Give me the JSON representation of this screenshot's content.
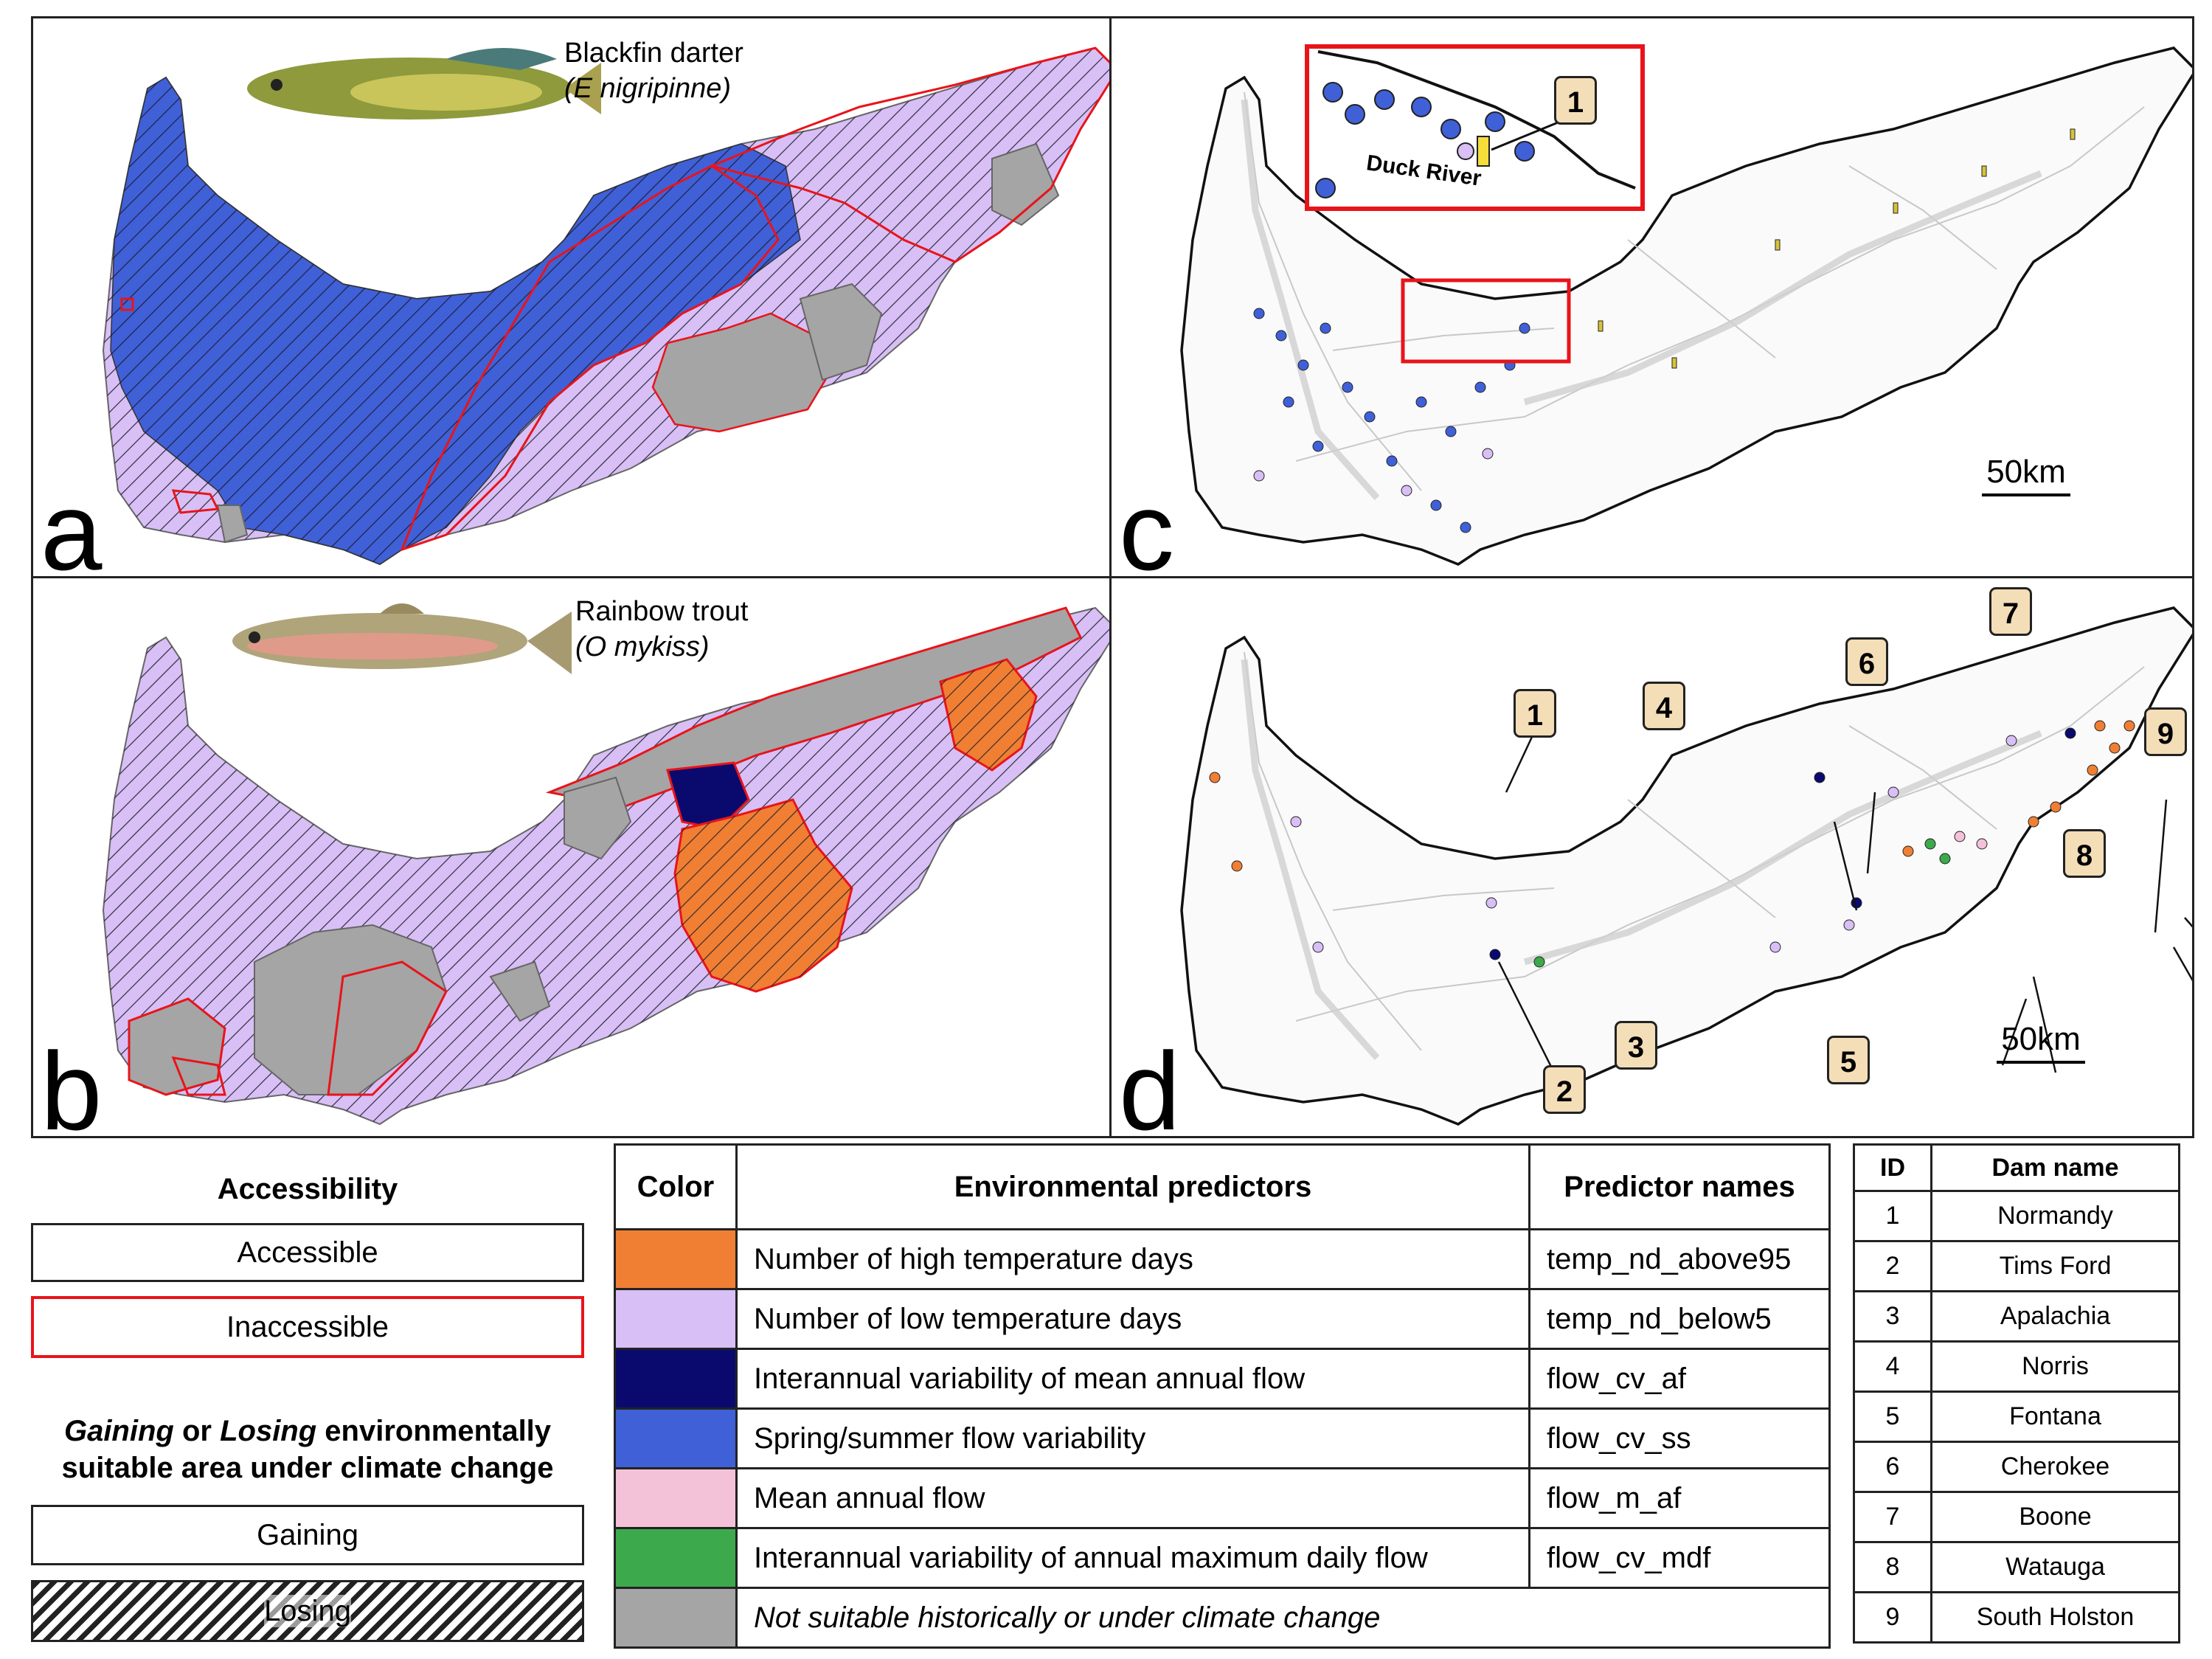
{
  "panels": {
    "a": {
      "label": "a",
      "species_common": "Blackfin darter",
      "species_sci": "(E nigripinne)"
    },
    "b": {
      "label": "b",
      "species_common": "Rainbow trout",
      "species_sci": "(O mykiss)"
    },
    "c": {
      "label": "c",
      "scale": "50km",
      "inset_label": "Duck River",
      "callouts": [
        "1"
      ]
    },
    "d": {
      "label": "d",
      "scale": "50km",
      "callouts": [
        "1",
        "2",
        "3",
        "4",
        "5",
        "6",
        "7",
        "8",
        "9"
      ]
    }
  },
  "colors": {
    "orange": "#f07f33",
    "lavender": "#d8bff5",
    "navy": "#0a0a6e",
    "blue": "#4060d8",
    "pink": "#f4c2d8",
    "green": "#3caa4c",
    "gray": "#a5a5a5",
    "inaccessible": "#e8141a",
    "callout_fill": "#f4deb8"
  },
  "legend": {
    "accessibility_title": "Accessibility",
    "accessible": "Accessible",
    "inaccessible": "Inaccessible",
    "change_title_1": "Gaining",
    "change_title_2": " or ",
    "change_title_3": "Losing",
    "change_title_4": " environmentally",
    "change_title_5": "suitable area under climate change",
    "gaining": "Gaining",
    "losing": "Losing"
  },
  "predictors": {
    "headers": {
      "color": "Color",
      "env": "Environmental predictors",
      "names": "Predictor names"
    },
    "rows": [
      {
        "color": "#f07f33",
        "label": "Number of high temperature days",
        "name": "temp_nd_above95"
      },
      {
        "color": "#d8bff5",
        "label": "Number of low temperature days",
        "name": "temp_nd_below5"
      },
      {
        "color": "#0a0a6e",
        "label": "Interannual variability of mean annual flow",
        "name": "flow_cv_af"
      },
      {
        "color": "#4060d8",
        "label": "Spring/summer flow variability",
        "name": "flow_cv_ss"
      },
      {
        "color": "#f4c2d8",
        "label": "Mean annual flow",
        "name": "flow_m_af"
      },
      {
        "color": "#3caa4c",
        "label": "Interannual variability of annual maximum daily flow",
        "name": "flow_cv_mdf"
      },
      {
        "color": "#a5a5a5",
        "label": "Not suitable historically or under climate change",
        "name": ""
      }
    ]
  },
  "dams": {
    "headers": {
      "id": "ID",
      "name": "Dam name"
    },
    "rows": [
      {
        "id": "1",
        "name": "Normandy"
      },
      {
        "id": "2",
        "name": "Tims Ford"
      },
      {
        "id": "3",
        "name": "Apalachia"
      },
      {
        "id": "4",
        "name": "Norris"
      },
      {
        "id": "5",
        "name": "Fontana"
      },
      {
        "id": "6",
        "name": "Cherokee"
      },
      {
        "id": "7",
        "name": "Boone"
      },
      {
        "id": "8",
        "name": "Watauga"
      },
      {
        "id": "9",
        "name": "South Holston"
      }
    ]
  }
}
